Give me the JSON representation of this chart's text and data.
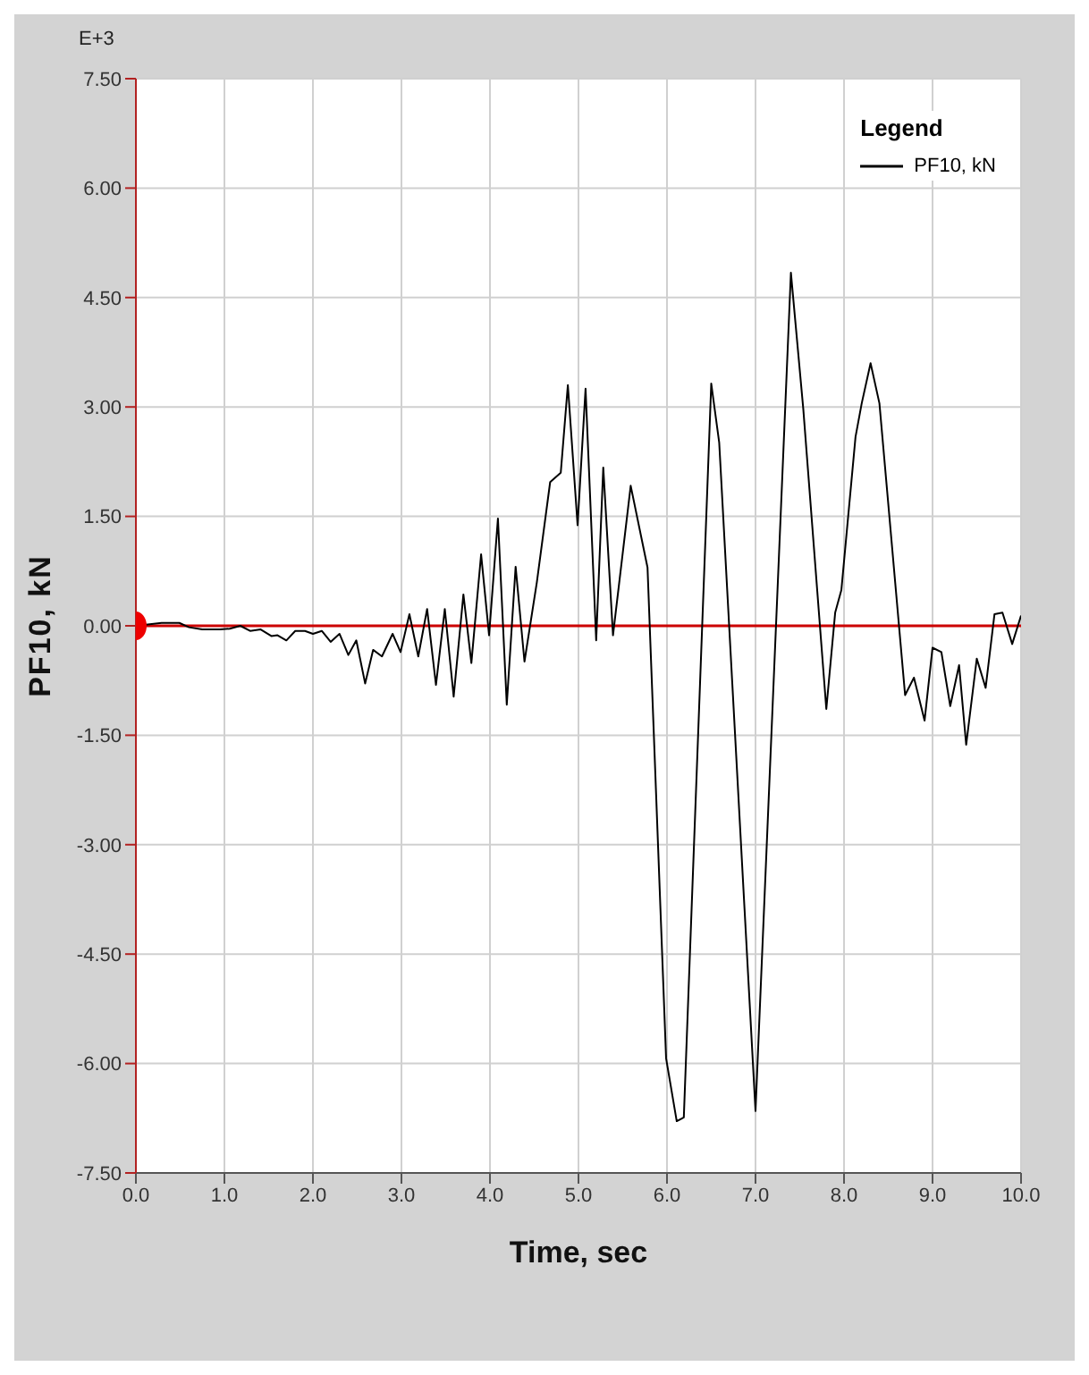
{
  "chart_data": {
    "type": "line",
    "xlabel": "Time, sec",
    "ylabel": "PF10, kN",
    "legend_title": "Legend",
    "annotations": [
      "E+3"
    ],
    "xlim": [
      0,
      10
    ],
    "xticks": [
      {
        "value": 0,
        "label": "0.0"
      },
      {
        "value": 1,
        "label": "1.0"
      },
      {
        "value": 2,
        "label": "2.0"
      },
      {
        "value": 3,
        "label": "3.0"
      },
      {
        "value": 4,
        "label": "4.0"
      },
      {
        "value": 5,
        "label": "5.0"
      },
      {
        "value": 6,
        "label": "6.0"
      },
      {
        "value": 7,
        "label": "7.0"
      },
      {
        "value": 8,
        "label": "8.0"
      },
      {
        "value": 9,
        "label": "9.0"
      },
      {
        "value": 10,
        "label": "10.0"
      }
    ],
    "ylim": [
      -7.5,
      7.5
    ],
    "yticks": [
      {
        "value": -7.5,
        "label": "-7.50"
      },
      {
        "value": -6,
        "label": "-6.00"
      },
      {
        "value": -4.5,
        "label": "-4.50"
      },
      {
        "value": -3,
        "label": "-3.00"
      },
      {
        "value": -1.5,
        "label": "-1.50"
      },
      {
        "value": 0,
        "label": "0.00"
      },
      {
        "value": 1.5,
        "label": "1.50"
      },
      {
        "value": 3,
        "label": "3.00"
      },
      {
        "value": 4.5,
        "label": "4.50"
      },
      {
        "value": 6,
        "label": "6.00"
      },
      {
        "value": 7.5,
        "label": "7.50"
      }
    ],
    "grid": true,
    "legend": "top right",
    "marker": "none",
    "line_style": "solid",
    "ref_lines": [
      {
        "axis": "y",
        "value": 0,
        "color": "#cc0000"
      }
    ],
    "series": [
      {
        "name": "PF10, kN",
        "color": "#000000",
        "x": [
          0,
          0.29,
          0.49,
          0.6,
          0.75,
          0.95,
          1.06,
          1.18,
          1.29,
          1.41,
          1.53,
          1.6,
          1.7,
          1.8,
          1.91,
          2.0,
          2.1,
          2.2,
          2.3,
          2.4,
          2.49,
          2.59,
          2.68,
          2.78,
          2.9,
          2.99,
          3.09,
          3.19,
          3.29,
          3.39,
          3.49,
          3.59,
          3.7,
          3.79,
          3.9,
          3.99,
          4.09,
          4.19,
          4.29,
          4.39,
          4.53,
          4.68,
          4.8,
          4.88,
          4.99,
          5.08,
          5.2,
          5.28,
          5.39,
          5.59,
          5.78,
          5.99,
          6.11,
          6.19,
          6.5,
          6.59,
          7.0,
          7.4,
          7.54,
          7.8,
          7.9,
          7.97,
          8.13,
          8.2,
          8.3,
          8.4,
          8.69,
          8.79,
          8.91,
          9.0,
          9.1,
          9.2,
          9.3,
          9.38,
          9.5,
          9.6,
          9.7,
          9.79,
          9.9,
          10.0
        ],
        "values": [
          0,
          0.04,
          0.04,
          -0.02,
          -0.05,
          -0.05,
          -0.04,
          0,
          -0.07,
          -0.05,
          -0.14,
          -0.13,
          -0.2,
          -0.07,
          -0.07,
          -0.11,
          -0.07,
          -0.22,
          -0.11,
          -0.4,
          -0.2,
          -0.79,
          -0.33,
          -0.42,
          -0.11,
          -0.36,
          0.16,
          -0.42,
          0.23,
          -0.81,
          0.23,
          -0.97,
          0.43,
          -0.51,
          0.98,
          -0.13,
          1.47,
          -1.08,
          0.81,
          -0.49,
          0.6,
          1.97,
          2.1,
          3.3,
          1.38,
          3.25,
          -0.2,
          2.17,
          -0.13,
          1.92,
          0.8,
          -5.93,
          -6.79,
          -6.74,
          3.32,
          2.51,
          -6.65,
          4.84,
          2.97,
          -1.14,
          0.18,
          0.49,
          2.59,
          3.05,
          3.6,
          3.05,
          -0.95,
          -0.71,
          -1.3,
          -0.3,
          -0.36,
          -1.1,
          -0.54,
          -1.63,
          -0.45,
          -0.85,
          0.16,
          0.18,
          -0.25,
          0.14
        ]
      },
      {
        "type": "scatter",
        "color": "#ee0000",
        "marker": "circle",
        "x": [
          0
        ],
        "values": [
          0
        ]
      }
    ]
  }
}
